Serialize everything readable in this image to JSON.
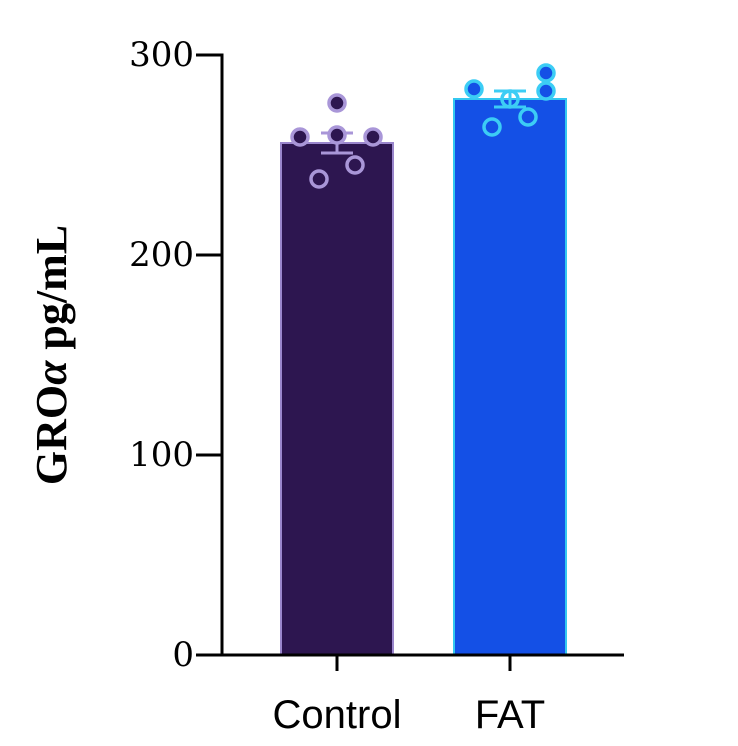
{
  "chart_data": {
    "type": "bar",
    "title": "",
    "ylabel": "GROα pg/mL",
    "ylabel_parts": {
      "prefix": "GRO",
      "symbol": "α",
      "suffix": " pg/mL"
    },
    "xlabel": "",
    "ylim": [
      0,
      300
    ],
    "yticks": [
      0,
      100,
      200,
      300
    ],
    "ytick_labels": [
      "0",
      "100",
      "200",
      "300"
    ],
    "grid": false,
    "legend": "none",
    "categories": [
      "Control",
      "FAT"
    ],
    "values": [
      256,
      278
    ],
    "sem": [
      5,
      4
    ],
    "colors": {
      "bars": [
        "#2d1650",
        "#1450e6"
      ],
      "bar_edges": [
        "#9a86cc",
        "#34c8f0"
      ],
      "points_stroke": [
        "#a996d8",
        "#3ccdf5"
      ],
      "points_fill": [
        "#2d1650",
        "#1450e6"
      ]
    },
    "points": [
      [
        {
          "y": 276,
          "dx": 0,
          "filled": true
        },
        {
          "y": 259,
          "dx": -37,
          "filled": true
        },
        {
          "y": 260,
          "dx": 0,
          "filled": true
        },
        {
          "y": 259,
          "dx": 36,
          "filled": true
        },
        {
          "y": 245,
          "dx": 18,
          "filled": false
        },
        {
          "y": 238,
          "dx": -18,
          "filled": false
        }
      ],
      [
        {
          "y": 283,
          "dx": -36,
          "filled": true
        },
        {
          "y": 291,
          "dx": 36,
          "filled": true
        },
        {
          "y": 282,
          "dx": 36,
          "filled": true
        },
        {
          "y": 278,
          "dx": 0,
          "filled": false
        },
        {
          "y": 269,
          "dx": 18,
          "filled": false
        },
        {
          "y": 264,
          "dx": -18,
          "filled": false
        }
      ]
    ]
  }
}
